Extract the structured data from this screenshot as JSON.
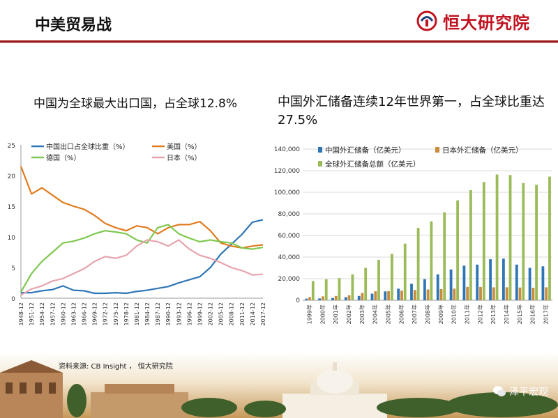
{
  "header": {
    "title": "中美贸易战",
    "logo_text": "恒大研究院",
    "accent_color": "#9b1b1b",
    "logo_color": "#c0121f"
  },
  "footer": {
    "source": "资料来源:    CB Insight ， 恒大研究院",
    "watermark": "泽平宏观",
    "watermark_icon": "wechat-icon"
  },
  "chart_data": [
    {
      "type": "line",
      "title": "中国为全球最大出口国，占全球12.8%",
      "ylim": [
        0,
        25
      ],
      "yticks": [
        0,
        5,
        10,
        15,
        20,
        25
      ],
      "xtick_labels": [
        "1948-12",
        "1951-12",
        "1954-12",
        "1957-12",
        "1960-12",
        "1963-12",
        "1966-12",
        "1969-12",
        "1972-12",
        "1975-12",
        "1978-12",
        "1981-12",
        "1984-12",
        "1987-12",
        "1990-12",
        "1993-12",
        "1996-12",
        "1999-12",
        "2002-12",
        "2005-12",
        "2008-12",
        "2011-12",
        "2014-12",
        "2017-12"
      ],
      "x": [
        1948,
        1951,
        1954,
        1957,
        1960,
        1963,
        1966,
        1969,
        1972,
        1975,
        1978,
        1981,
        1984,
        1987,
        1990,
        1993,
        1996,
        1999,
        2002,
        2005,
        2008,
        2011,
        2014,
        2017
      ],
      "series": [
        {
          "name": "中国出口占全球比重（%）",
          "color": "#2e75b6",
          "values": [
            0.9,
            0.9,
            1.2,
            1.4,
            2.0,
            1.3,
            1.2,
            0.8,
            0.8,
            0.9,
            0.8,
            1.1,
            1.3,
            1.6,
            1.9,
            2.5,
            3.0,
            3.5,
            5.0,
            7.2,
            8.8,
            10.4,
            12.4,
            12.8
          ]
        },
        {
          "name": "美国（%）",
          "color": "#e07b1e",
          "values": [
            21.5,
            17.0,
            18.0,
            16.8,
            15.6,
            15.0,
            14.5,
            13.5,
            12.2,
            11.5,
            11.0,
            11.8,
            11.5,
            10.5,
            11.5,
            12.0,
            12.0,
            12.5,
            11.0,
            9.0,
            8.5,
            8.2,
            8.5,
            8.7
          ]
        },
        {
          "name": "德国（%）",
          "color": "#7ec850",
          "values": [
            1.0,
            4.0,
            6.0,
            7.5,
            9.0,
            9.3,
            9.8,
            10.5,
            11.0,
            10.8,
            10.5,
            9.5,
            9.0,
            11.5,
            12.0,
            10.5,
            9.8,
            9.2,
            9.5,
            9.2,
            9.0,
            8.2,
            8.0,
            8.3
          ]
        },
        {
          "name": "日本（%）",
          "color": "#e7a3ad",
          "values": [
            0.5,
            1.5,
            2.0,
            2.8,
            3.2,
            4.0,
            4.8,
            6.0,
            6.8,
            6.5,
            7.0,
            8.5,
            9.5,
            9.2,
            8.5,
            9.5,
            8.0,
            7.0,
            6.5,
            5.8,
            5.0,
            4.5,
            3.8,
            3.9
          ]
        }
      ],
      "legend_position": "top",
      "grid": false
    },
    {
      "type": "bar",
      "title": "中国外汇储备连续12年世界第一，占全球比重达27.5%",
      "ylim": [
        0,
        140000
      ],
      "yticks": [
        "0",
        "20,000",
        "40,000",
        "60,000",
        "80,000",
        "100,000",
        "120,000",
        "140,000"
      ],
      "categories": [
        "1999年",
        "2000年",
        "2001年",
        "2002年",
        "2003年",
        "2004年",
        "2005年",
        "2006年",
        "2007年",
        "2008年",
        "2009年",
        "2010年",
        "2011年",
        "2012年",
        "2013年",
        "2014年",
        "2015年",
        "2016年",
        "2017年"
      ],
      "series": [
        {
          "name": "中国外汇储备（亿美元）",
          "color": "#2e75b6",
          "values": [
            1500,
            1700,
            2100,
            2900,
            4000,
            6100,
            8200,
            10700,
            15300,
            19500,
            24000,
            28500,
            32000,
            33000,
            38000,
            38500,
            33000,
            30000,
            31400
          ]
        },
        {
          "name": "日本外汇储备（亿美元）",
          "color": "#c98b3c",
          "values": [
            2900,
            3600,
            4000,
            4600,
            6700,
            8300,
            8400,
            8900,
            9500,
            10000,
            10400,
            10800,
            12400,
            12300,
            12000,
            12000,
            11800,
            11600,
            12000
          ]
        },
        {
          "name": "全球外汇储备总额（亿美元）",
          "color": "#9bbb59",
          "values": [
            17800,
            19400,
            20500,
            24000,
            30000,
            37500,
            43000,
            52500,
            67000,
            73000,
            81500,
            92500,
            102000,
            109500,
            116500,
            116000,
            108500,
            107000,
            114500
          ]
        }
      ],
      "legend_position": "top-left",
      "grid": true
    }
  ]
}
